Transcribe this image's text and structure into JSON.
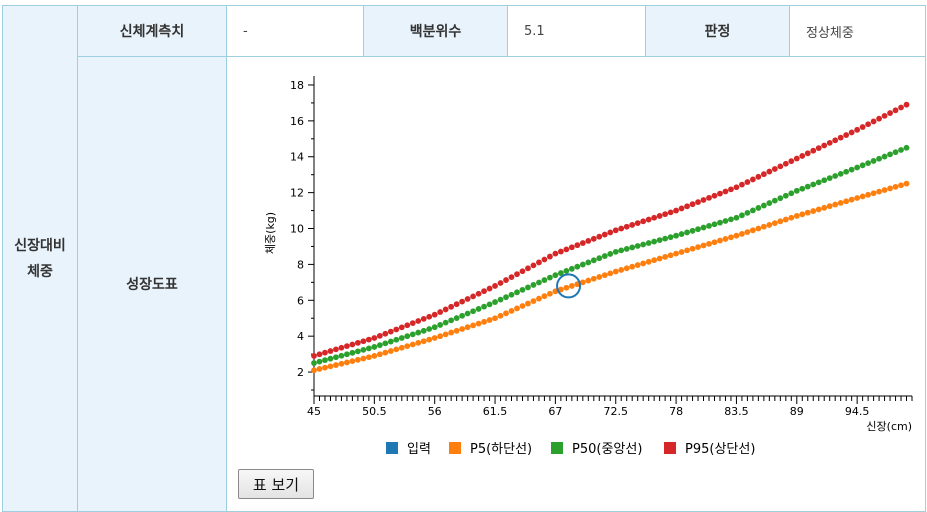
{
  "table": {
    "row_header": "신장대비\n체중",
    "measure_label": "신체계측치",
    "measure_value": "-",
    "percentile_label": "백분위수",
    "percentile_value": "5.1",
    "judgement_label": "판정",
    "judgement_value": "정상체중",
    "growth_chart_label": "성장도표"
  },
  "button": {
    "table_view": "표 보기"
  },
  "colors": {
    "input": "#1f77b4",
    "p5": "#ff7f0e",
    "p50": "#2ca02c",
    "p95": "#d62728"
  },
  "chart_data": {
    "type": "scatter",
    "xlabel": "신장(cm)",
    "ylabel": "체중(kg)",
    "xlim": [
      45,
      99.5
    ],
    "ylim": [
      1,
      18.5
    ],
    "x_ticks": [
      45,
      50.5,
      56,
      61.5,
      67,
      72.5,
      78,
      83.5,
      89,
      94.5
    ],
    "y_ticks": [
      2,
      4,
      6,
      8,
      10,
      12,
      14,
      16,
      18
    ],
    "x_step": 0.5,
    "legend": [
      {
        "name": "입력",
        "color": "#1f77b4"
      },
      {
        "name": "P5(하단선)",
        "color": "#ff7f0e"
      },
      {
        "name": "P50(중앙선)",
        "color": "#2ca02c"
      },
      {
        "name": "P95(상단선)",
        "color": "#d62728"
      }
    ],
    "legend_position": "bottom",
    "input_point": {
      "x": 68.2,
      "y": 6.8
    },
    "series": [
      {
        "name": "P5(하단선)",
        "color": "#ff7f0e",
        "x": [
          45,
          50.5,
          56,
          61.5,
          67,
          72.5,
          78,
          83.5,
          89,
          94.5,
          99
        ],
        "y": [
          2.1,
          2.9,
          3.9,
          5.0,
          6.5,
          7.6,
          8.6,
          9.6,
          10.7,
          11.7,
          12.5
        ]
      },
      {
        "name": "P50(중앙선)",
        "color": "#2ca02c",
        "x": [
          45,
          50.5,
          56,
          61.5,
          67,
          72.5,
          78,
          83.5,
          89,
          94.5,
          99
        ],
        "y": [
          2.5,
          3.4,
          4.5,
          5.9,
          7.4,
          8.7,
          9.6,
          10.6,
          12.1,
          13.4,
          14.5
        ]
      },
      {
        "name": "P95(상단선)",
        "color": "#d62728",
        "x": [
          45,
          50.5,
          56,
          61.5,
          67,
          72.5,
          78,
          83.5,
          89,
          94.5,
          99
        ],
        "y": [
          2.9,
          3.9,
          5.2,
          6.8,
          8.6,
          9.9,
          11.0,
          12.3,
          13.9,
          15.5,
          16.9
        ]
      }
    ]
  }
}
